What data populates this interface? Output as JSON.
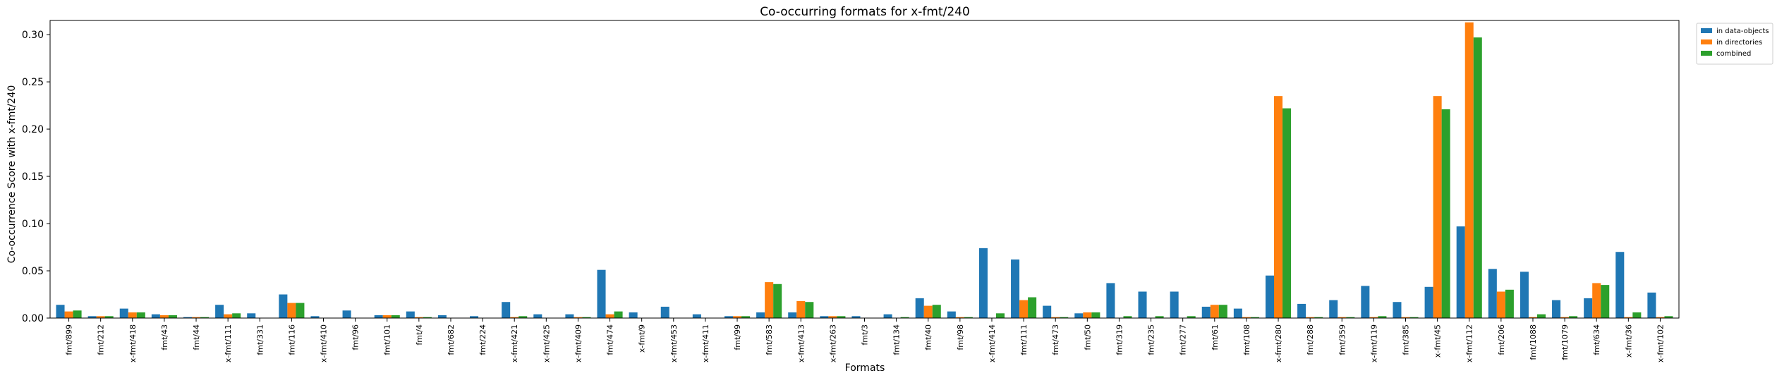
{
  "chart_data": {
    "type": "bar",
    "title": "Co-occurring formats for x-fmt/240",
    "xlabel": "Formats",
    "ylabel": "Co-occurrence Score with x-fmt/240",
    "ylim": [
      0,
      0.315
    ],
    "yticks": [
      0.0,
      0.05,
      0.1,
      0.15,
      0.2,
      0.25,
      0.3
    ],
    "ytick_labels": [
      "0.00",
      "0.05",
      "0.10",
      "0.15",
      "0.20",
      "0.25",
      "0.30"
    ],
    "legend_position": "outside-top-right",
    "grid": false,
    "categories": [
      "fmt/899",
      "fmt/212",
      "x-fmt/418",
      "fmt/43",
      "fmt/44",
      "x-fmt/111",
      "fmt/331",
      "fmt/116",
      "x-fmt/410",
      "fmt/96",
      "fmt/101",
      "fmt/4",
      "fmt/682",
      "fmt/224",
      "x-fmt/421",
      "x-fmt/425",
      "x-fmt/409",
      "fmt/474",
      "x-fmt/9",
      "x-fmt/453",
      "x-fmt/411",
      "fmt/99",
      "fmt/583",
      "x-fmt/413",
      "x-fmt/263",
      "fmt/3",
      "fmt/134",
      "fmt/40",
      "fmt/98",
      "x-fmt/414",
      "fmt/111",
      "fmt/473",
      "fmt/50",
      "fmt/319",
      "fmt/235",
      "fmt/277",
      "fmt/61",
      "fmt/108",
      "x-fmt/280",
      "fmt/288",
      "fmt/359",
      "x-fmt/119",
      "fmt/385",
      "x-fmt/45",
      "x-fmt/112",
      "fmt/206",
      "fmt/1088",
      "fmt/1079",
      "fmt/634",
      "x-fmt/36",
      "x-fmt/102"
    ],
    "series": [
      {
        "name": "in data-objects",
        "color": "#1f77b4",
        "values": [
          0.014,
          0.002,
          0.01,
          0.004,
          0.001,
          0.014,
          0.005,
          0.025,
          0.002,
          0.008,
          0.003,
          0.007,
          0.003,
          0.002,
          0.017,
          0.004,
          0.004,
          0.051,
          0.006,
          0.012,
          0.004,
          0.002,
          0.006,
          0.006,
          0.002,
          0.002,
          0.004,
          0.021,
          0.007,
          0.074,
          0.062,
          0.013,
          0.005,
          0.037,
          0.028,
          0.028,
          0.012,
          0.01,
          0.045,
          0.015,
          0.019,
          0.034,
          0.017,
          0.033,
          0.097,
          0.052,
          0.049,
          0.019,
          0.021,
          0.07,
          0.027
        ]
      },
      {
        "name": "in directories",
        "color": "#ff7f0e",
        "values": [
          0.007,
          0.002,
          0.006,
          0.003,
          0.001,
          0.004,
          0.0,
          0.016,
          0.0,
          0.0,
          0.003,
          0.001,
          0.0,
          0.0,
          0.001,
          0.0,
          0.001,
          0.004,
          0.0,
          0.0,
          0.0,
          0.002,
          0.038,
          0.018,
          0.002,
          0.0,
          0.0,
          0.013,
          0.001,
          0.0,
          0.019,
          0.001,
          0.006,
          0.0,
          0.0,
          0.0,
          0.014,
          0.001,
          0.235,
          0.001,
          0.001,
          0.001,
          0.001,
          0.235,
          0.313,
          0.028,
          0.001,
          0.001,
          0.037,
          0.001,
          0.001
        ]
      },
      {
        "name": "combined",
        "color": "#2ca02c",
        "values": [
          0.008,
          0.002,
          0.006,
          0.003,
          0.001,
          0.005,
          0.0,
          0.016,
          0.0,
          0.0,
          0.003,
          0.001,
          0.0,
          0.0,
          0.002,
          0.0,
          0.001,
          0.007,
          0.0,
          0.0,
          0.0,
          0.002,
          0.036,
          0.017,
          0.002,
          0.0,
          0.001,
          0.014,
          0.001,
          0.005,
          0.022,
          0.001,
          0.006,
          0.002,
          0.002,
          0.002,
          0.014,
          0.001,
          0.222,
          0.001,
          0.001,
          0.002,
          0.001,
          0.221,
          0.297,
          0.03,
          0.004,
          0.002,
          0.035,
          0.006,
          0.002
        ]
      }
    ]
  }
}
